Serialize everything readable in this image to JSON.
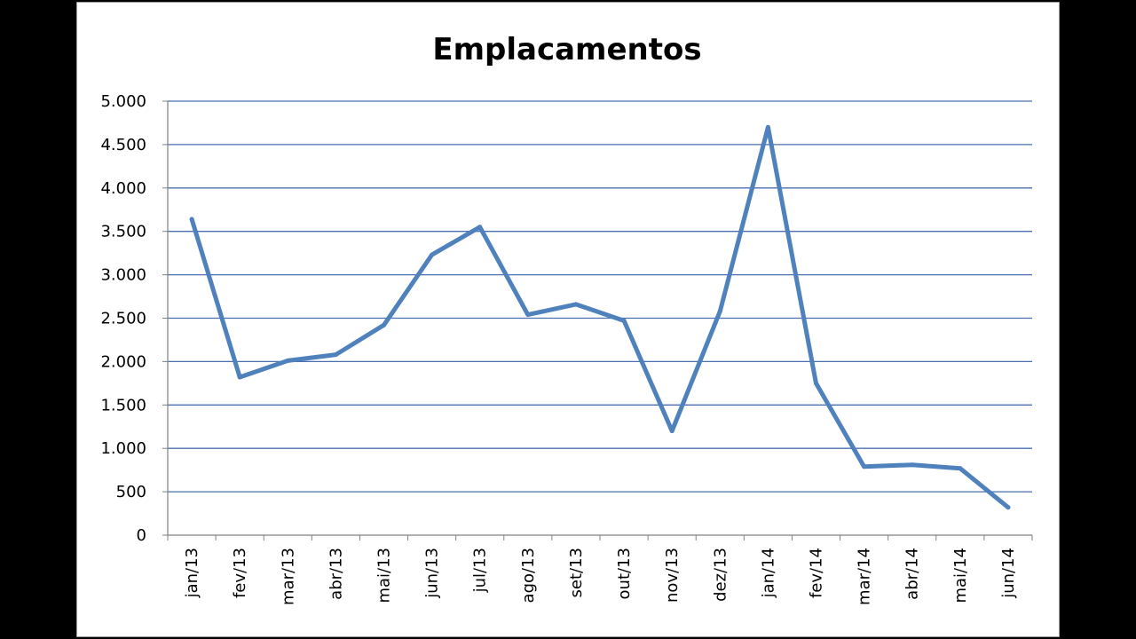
{
  "chart_data": {
    "type": "line",
    "title": "Emplacamentos",
    "categories": [
      "jan/13",
      "fev/13",
      "mar/13",
      "abr/13",
      "mai/13",
      "jun/13",
      "jul/13",
      "ago/13",
      "set/13",
      "out/13",
      "nov/13",
      "dez/13",
      "jan/14",
      "fev/14",
      "mar/14",
      "abr/14",
      "mai/14",
      "jun/14"
    ],
    "series": [
      {
        "values": [
          3640,
          1820,
          2010,
          2080,
          2420,
          3230,
          3550,
          2540,
          2660,
          2470,
          1200,
          2580,
          4700,
          1750,
          790,
          810,
          770,
          320
        ]
      }
    ],
    "ylim": [
      0,
      5000
    ],
    "yticks": [
      0,
      500,
      1000,
      1500,
      2000,
      2500,
      3000,
      3500,
      4000,
      4500,
      5000
    ],
    "ytick_labels": [
      "0",
      "500",
      "1.000",
      "1.500",
      "2.000",
      "2.500",
      "3.000",
      "3.500",
      "4.000",
      "4.500",
      "5.000"
    ],
    "grid": true,
    "legend": "none",
    "colors": {
      "line": "#4f81bd",
      "grid": "#4a6fb0",
      "axis": "#808080"
    }
  }
}
